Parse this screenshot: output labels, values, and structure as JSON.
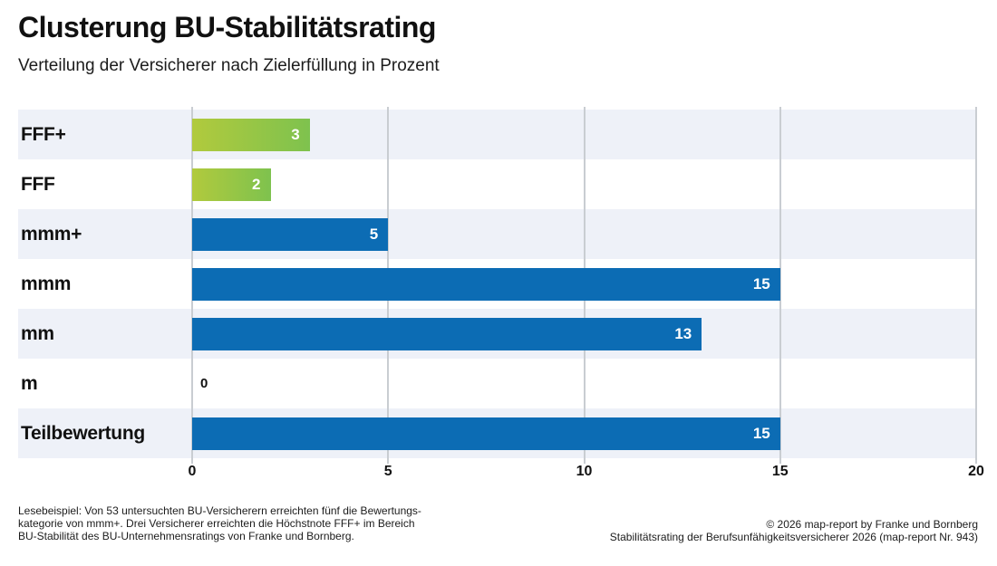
{
  "header": {
    "title": "Clusterung BU-Stabilitätsrating",
    "subtitle": "Verteilung der Versicherer nach Zielerfüllung in Prozent"
  },
  "chart_data": {
    "type": "bar",
    "orientation": "horizontal",
    "title": "Clusterung BU-Stabilitätsrating",
    "subtitle": "Verteilung der Versicherer nach Zielerfüllung in Prozent",
    "categories": [
      "FFF+",
      "FFF",
      "mmm+",
      "mmm",
      "mm",
      "m",
      "Teilbewertung"
    ],
    "values": [
      3,
      2,
      5,
      15,
      13,
      0,
      15
    ],
    "xlim": [
      0,
      20
    ],
    "xticks": [
      0,
      5,
      10,
      15,
      20
    ],
    "grid": "vertical",
    "legend": "none",
    "bar_styles": [
      "green-gradient",
      "green-gradient",
      "blue",
      "blue",
      "blue",
      "blue",
      "blue"
    ],
    "colors": {
      "blue": "#0c6cb4",
      "green_gradient_start": "#b1ca3d",
      "green_gradient_end": "#7ec24e",
      "row_band": "#eef1f8",
      "gridline": "#c9cdd2",
      "value_label_inside": "#ffffff",
      "value_label_outside": "#111111"
    }
  },
  "footer": {
    "left_lines": [
      "Lesebeispiel: Von 53 untersuchten BU-Versicherern erreichten fünf die Bewertungs-",
      "kategorie von mmm+. Drei Versicherer erreichten die Höchstnote FFF+ im Bereich",
      "BU-Stabilität des BU-Unternehmensratings von Franke und Bornberg."
    ],
    "right_lines": [
      "© 2026 map-report by Franke und Bornberg",
      "Stabilitätsrating der Berufsunfähigkeitsversicherer 2026 (map-report Nr. 943)"
    ]
  }
}
